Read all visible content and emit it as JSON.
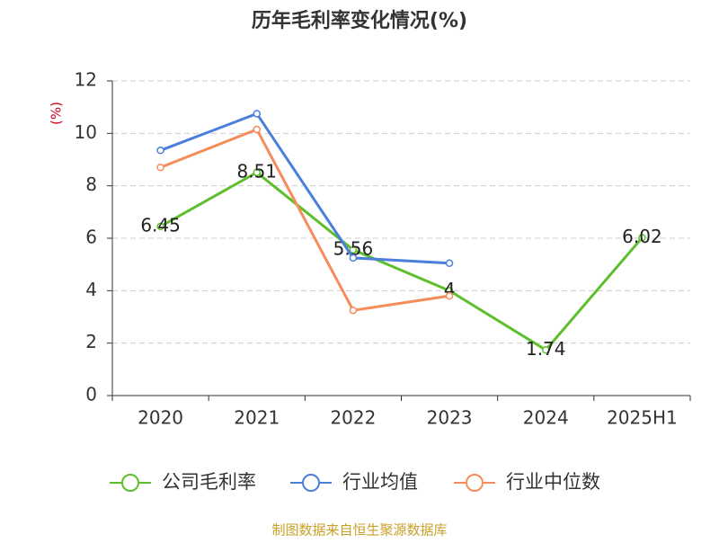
{
  "chart_data": {
    "type": "line",
    "title": "历年毛利率变化情况(%)",
    "y_label": "(%)",
    "categories": [
      "2020",
      "2021",
      "2022",
      "2023",
      "2024",
      "2025H1"
    ],
    "series": [
      {
        "name": "公司毛利率",
        "color": "#5dbf2b",
        "values": [
          6.45,
          8.51,
          5.56,
          4,
          1.74,
          6.02
        ],
        "labels": true
      },
      {
        "name": "行业均值",
        "color": "#4a7fdc",
        "values": [
          9.35,
          10.75,
          5.25,
          5.05,
          null,
          null
        ],
        "labels": false
      },
      {
        "name": "行业中位数",
        "color": "#f58c5a",
        "values": [
          8.7,
          10.15,
          3.25,
          3.8,
          null,
          null
        ],
        "labels": false
      }
    ],
    "ylim": [
      0,
      12
    ],
    "yticks": [
      0,
      2,
      4,
      6,
      8,
      10,
      12
    ],
    "grid": true,
    "source": "制图数据来自恒生聚源数据库"
  }
}
